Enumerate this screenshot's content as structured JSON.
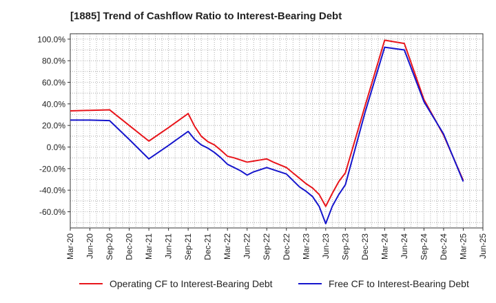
{
  "chart_data": {
    "type": "line",
    "title": "[1885]  Trend of Cashflow Ratio to Interest-Bearing Debt",
    "xlabel": "",
    "ylabel": "",
    "ylim": [
      -75,
      105
    ],
    "yticks": [
      -60,
      -40,
      -20,
      0,
      20,
      40,
      60,
      80,
      100
    ],
    "ytick_labels": [
      "-60.0%",
      "-40.0%",
      "-20.0%",
      "0.0%",
      "20.0%",
      "40.0%",
      "60.0%",
      "80.0%",
      "100.0%"
    ],
    "xticks": [
      "Mar-20",
      "Jun-20",
      "Sep-20",
      "Dec-20",
      "Mar-21",
      "Jun-21",
      "Sep-21",
      "Dec-21",
      "Mar-22",
      "Jun-22",
      "Sep-22",
      "Dec-22",
      "Mar-23",
      "Jun-23",
      "Sep-23",
      "Dec-23",
      "Mar-24",
      "Jun-24",
      "Sep-24",
      "Dec-24",
      "Mar-25",
      "Jun-25"
    ],
    "grid": true,
    "legend_position": "bottom",
    "x": [
      "2020-03",
      "2020-04",
      "2020-05",
      "2020-06",
      "2020-07",
      "2020-08",
      "2020-09",
      "2020-10",
      "2020-11",
      "2020-12",
      "2021-01",
      "2021-02",
      "2021-03",
      "2021-04",
      "2021-05",
      "2021-06",
      "2021-07",
      "2021-08",
      "2021-09",
      "2021-10",
      "2021-11",
      "2021-12",
      "2022-01",
      "2022-02",
      "2022-03",
      "2022-04",
      "2022-05",
      "2022-06",
      "2022-07",
      "2022-08",
      "2022-09",
      "2022-10",
      "2022-11",
      "2022-12",
      "2023-01",
      "2023-02",
      "2023-03",
      "2023-04",
      "2023-05",
      "2023-06",
      "2023-07",
      "2023-08",
      "2023-09",
      "2023-10",
      "2023-11",
      "2023-12",
      "2024-01",
      "2024-02",
      "2024-03",
      "2024-04",
      "2024-05",
      "2024-06",
      "2024-07",
      "2024-08",
      "2024-09",
      "2024-10",
      "2024-11",
      "2024-12",
      "2025-01",
      "2025-02",
      "2025-03"
    ],
    "series": [
      {
        "name": "Operating CF to Interest-Bearing Debt",
        "color": "#e8141a",
        "values": [
          33.5,
          null,
          null,
          34,
          null,
          null,
          34.5,
          null,
          null,
          20,
          null,
          null,
          5.5,
          null,
          null,
          18,
          null,
          null,
          31,
          19,
          10,
          5,
          2,
          -3,
          -8.5,
          -10,
          -12,
          -14,
          -13,
          -12,
          -11,
          -14,
          -16.5,
          -19,
          -24,
          -29,
          -34,
          -38,
          -44,
          -55,
          -43,
          -32,
          -24,
          null,
          null,
          38,
          null,
          null,
          99,
          null,
          null,
          96,
          null,
          null,
          44,
          null,
          null,
          11,
          null,
          null,
          -31
        ]
      },
      {
        "name": "Free CF to Interest-Bearing Debt",
        "color": "#1414cc",
        "values": [
          25,
          null,
          null,
          25,
          null,
          null,
          24.5,
          null,
          null,
          7,
          null,
          null,
          -11,
          null,
          null,
          1.5,
          null,
          null,
          14.5,
          7,
          2,
          -1,
          -5,
          -10,
          -16,
          -19,
          -22,
          -26,
          -23,
          -21,
          -19,
          -21,
          -23,
          -25,
          -31,
          -37,
          -41,
          -46,
          -55,
          -71,
          -55,
          -44,
          -35,
          null,
          null,
          32,
          null,
          null,
          92.5,
          null,
          null,
          90,
          null,
          null,
          42,
          null,
          null,
          12,
          null,
          null,
          -32
        ]
      }
    ]
  }
}
